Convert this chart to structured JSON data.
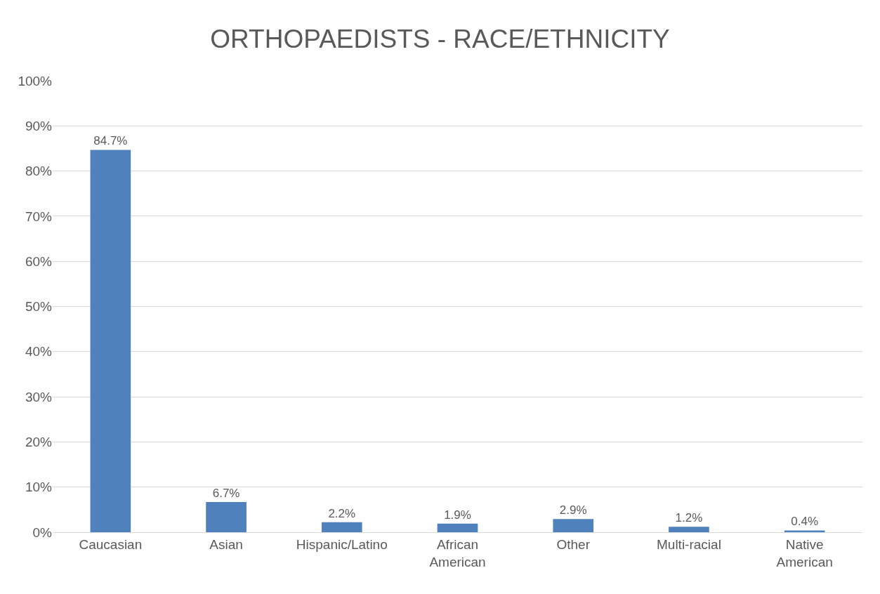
{
  "chart_data": {
    "type": "bar",
    "title": "ORTHOPAEDISTS - RACE/ETHNICITY",
    "categories": [
      "Caucasian",
      "Asian",
      "Hispanic/Latino",
      "African American",
      "Other",
      "Multi-racial",
      "Native American"
    ],
    "values": [
      84.7,
      6.7,
      2.2,
      1.9,
      2.9,
      1.2,
      0.4
    ],
    "value_labels": [
      "84.7%",
      "6.7%",
      "2.2%",
      "1.9%",
      "2.9%",
      "1.2%",
      "0.4%"
    ],
    "color": "#4f81bd",
    "ylim": [
      0,
      100
    ],
    "yticks": [
      {
        "value": 0,
        "label": "0%"
      },
      {
        "value": 10,
        "label": "10%"
      },
      {
        "value": 20,
        "label": "20%"
      },
      {
        "value": 30,
        "label": "30%"
      },
      {
        "value": 40,
        "label": "40%"
      },
      {
        "value": 50,
        "label": "50%"
      },
      {
        "value": 60,
        "label": "60%"
      },
      {
        "value": 70,
        "label": "70%"
      },
      {
        "value": 80,
        "label": "80%"
      },
      {
        "value": 90,
        "label": "90%"
      },
      {
        "value": 100,
        "label": "100%"
      }
    ],
    "grid": "y"
  }
}
